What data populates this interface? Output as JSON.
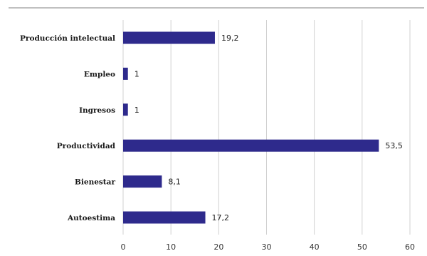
{
  "chart_data": {
    "type": "bar",
    "orientation": "horizontal",
    "categories": [
      "Producción intelectual",
      "Empleo",
      "Ingresos",
      "Productividad",
      "Bienestar",
      "Autoestima"
    ],
    "values": [
      19.2,
      1,
      1,
      53.5,
      8.1,
      17.2
    ],
    "value_labels": [
      "19,2",
      "1",
      "1",
      "53,5",
      "8,1",
      "17,2"
    ],
    "xlim": [
      0,
      60
    ],
    "xticks": [
      0,
      10,
      20,
      30,
      40,
      50,
      60
    ],
    "xtick_labels": [
      "0",
      "10",
      "20",
      "30",
      "40",
      "50",
      "60"
    ],
    "grid": true,
    "bar_color": "#2e2a8c",
    "grid_color": "#d0d0d0",
    "top_rule_color": "#9a9a9a"
  }
}
